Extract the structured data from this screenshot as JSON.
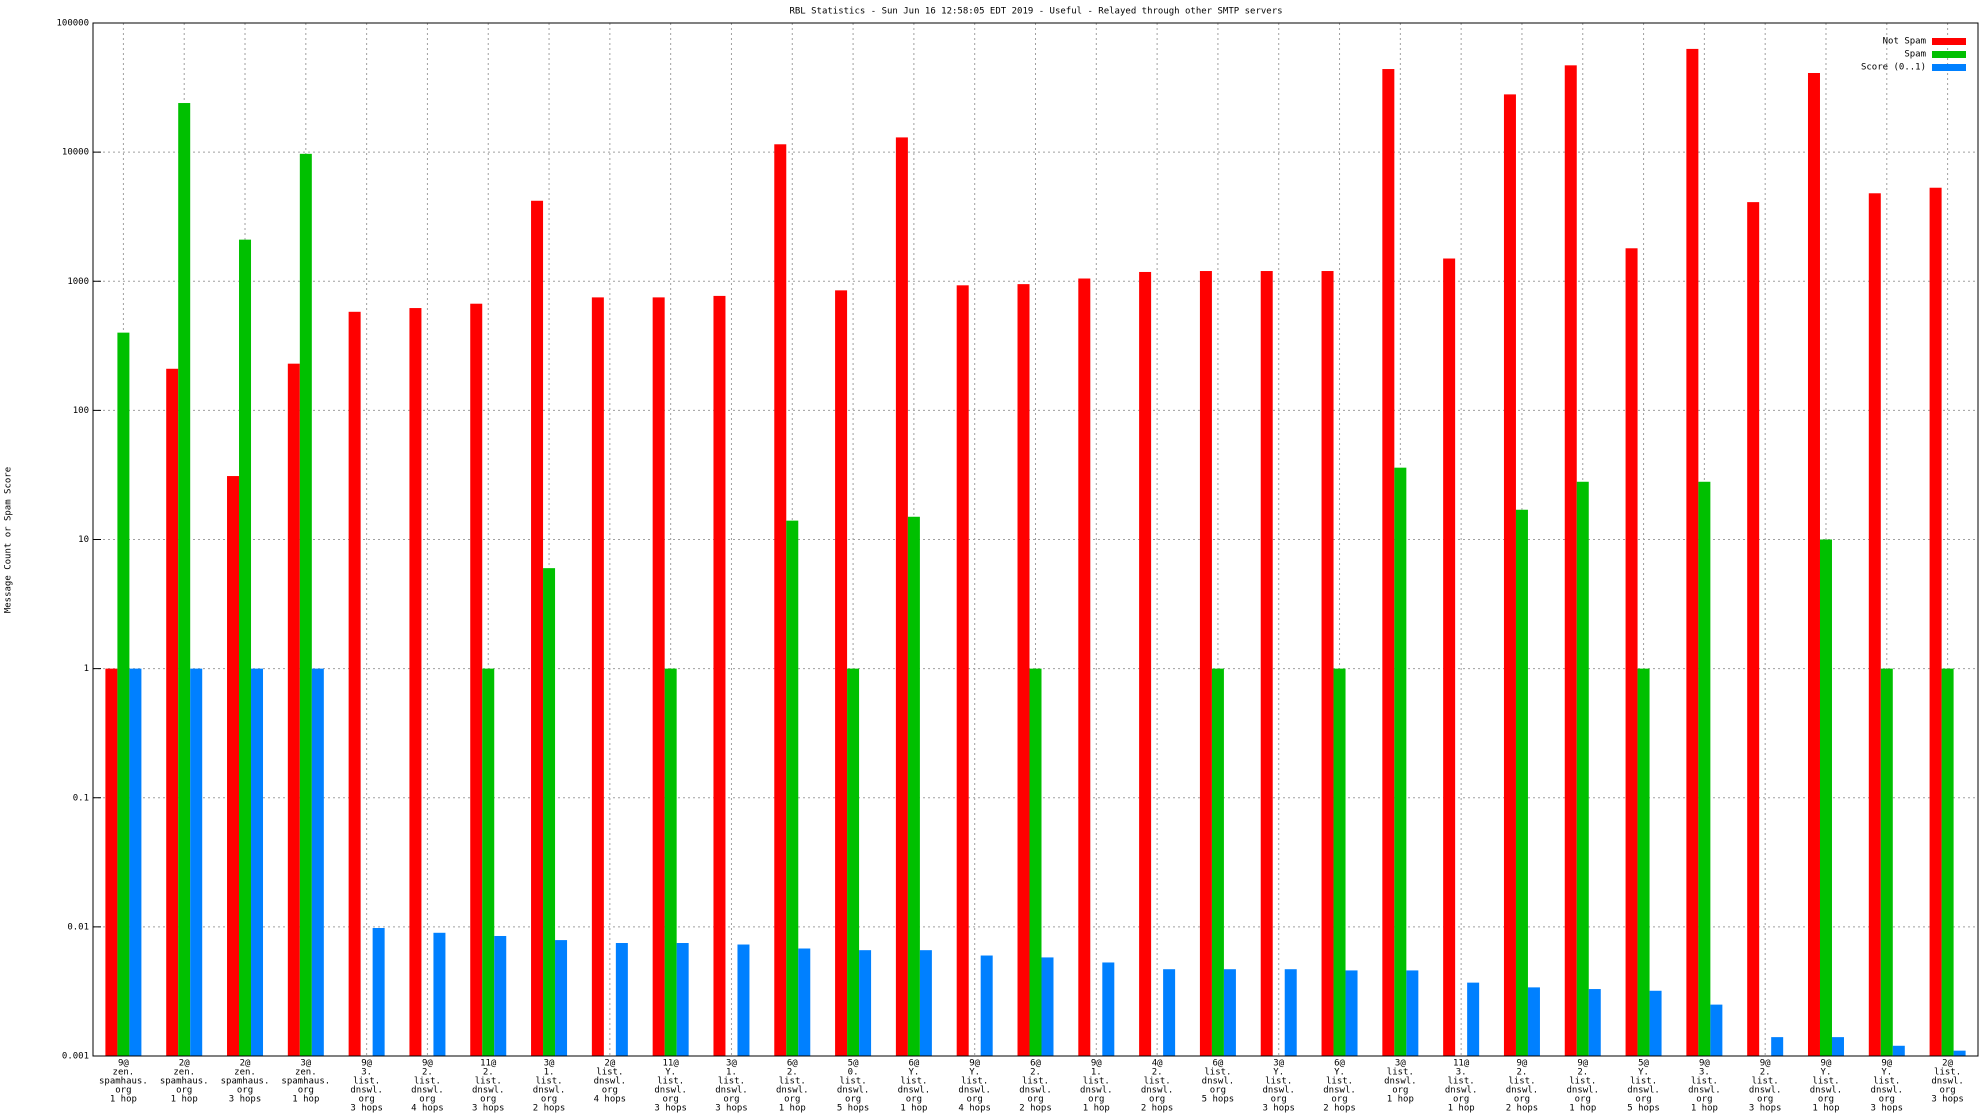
{
  "chart_data": {
    "type": "bar",
    "title": "RBL Statistics - Sun Jun 16 12:58:05 EDT 2019 - Useful - Relayed through other SMTP servers",
    "y_label": "Message Count or Spam Score",
    "log_scale": true,
    "grid": true,
    "legend_position": "top-right",
    "ylim": [
      0.001,
      100000
    ],
    "yticks": [
      0.001,
      0.01,
      0.1,
      1,
      10,
      100,
      1000,
      10000,
      100000
    ],
    "categories": [
      [
        "9@",
        "zen.",
        "spamhaus.",
        "org",
        "1 hop"
      ],
      [
        "2@",
        "zen.",
        "spamhaus.",
        "org",
        "1 hop"
      ],
      [
        "2@",
        "zen.",
        "spamhaus.",
        "org",
        "3 hops"
      ],
      [
        "3@",
        "zen.",
        "spamhaus.",
        "org",
        "1 hop"
      ],
      [
        "9@",
        "3.",
        "list.",
        "dnswl.",
        "org",
        "3 hops"
      ],
      [
        "9@",
        "2.",
        "list.",
        "dnswl.",
        "org",
        "4 hops"
      ],
      [
        "11@",
        "2.",
        "list.",
        "dnswl.",
        "org",
        "3 hops"
      ],
      [
        "3@",
        "1.",
        "list.",
        "dnswl.",
        "org",
        "2 hops"
      ],
      [
        "2@",
        "list.",
        "dnswl.",
        "org",
        "4 hops"
      ],
      [
        "11@",
        "Y.",
        "list.",
        "dnswl.",
        "org",
        "3 hops"
      ],
      [
        "3@",
        "1.",
        "list.",
        "dnswl.",
        "org",
        "3 hops"
      ],
      [
        "6@",
        "2.",
        "list.",
        "dnswl.",
        "org",
        "1 hop"
      ],
      [
        "5@",
        "0.",
        "list.",
        "dnswl.",
        "org",
        "5 hops"
      ],
      [
        "6@",
        "Y.",
        "list.",
        "dnswl.",
        "org",
        "1 hop"
      ],
      [
        "9@",
        "Y.",
        "list.",
        "dnswl.",
        "org",
        "4 hops"
      ],
      [
        "6@",
        "2.",
        "list.",
        "dnswl.",
        "org",
        "2 hops"
      ],
      [
        "9@",
        "1.",
        "list.",
        "dnswl.",
        "org",
        "1 hop"
      ],
      [
        "4@",
        "2.",
        "list.",
        "dnswl.",
        "org",
        "2 hops"
      ],
      [
        "6@",
        "list.",
        "dnswl.",
        "org",
        "5 hops"
      ],
      [
        "3@",
        "Y.",
        "list.",
        "dnswl.",
        "org",
        "3 hops"
      ],
      [
        "6@",
        "Y.",
        "list.",
        "dnswl.",
        "org",
        "2 hops"
      ],
      [
        "3@",
        "list.",
        "dnswl.",
        "org",
        "1 hop"
      ],
      [
        "11@",
        "3.",
        "list.",
        "dnswl.",
        "org",
        "1 hop"
      ],
      [
        "9@",
        "2.",
        "list.",
        "dnswl.",
        "org",
        "2 hops"
      ],
      [
        "9@",
        "2.",
        "list.",
        "dnswl.",
        "org",
        "1 hop"
      ],
      [
        "5@",
        "Y.",
        "list.",
        "dnswl.",
        "org",
        "5 hops"
      ],
      [
        "9@",
        "3.",
        "list.",
        "dnswl.",
        "org",
        "1 hop"
      ],
      [
        "9@",
        "2.",
        "list.",
        "dnswl.",
        "org",
        "3 hops"
      ],
      [
        "9@",
        "Y.",
        "list.",
        "dnswl.",
        "org",
        "1 hop"
      ],
      [
        "9@",
        "Y.",
        "list.",
        "dnswl.",
        "org",
        "3 hops"
      ],
      [
        "2@",
        "list.",
        "dnswl.",
        "org",
        "3 hops"
      ]
    ],
    "series": [
      {
        "name": "Not Spam",
        "color": "#ff0000",
        "values": [
          1,
          210,
          31,
          230,
          580,
          620,
          670,
          4200,
          750,
          750,
          770,
          11500,
          850,
          13000,
          930,
          950,
          1050,
          1180,
          1200,
          1200,
          1200,
          44000,
          1500,
          28000,
          47000,
          1800,
          63000,
          4100,
          41000,
          4800,
          5300
        ]
      },
      {
        "name": "Spam",
        "color": "#00c000",
        "values": [
          400,
          24000,
          2100,
          9700,
          null,
          null,
          1,
          6,
          null,
          1,
          null,
          14,
          1,
          15,
          null,
          1,
          null,
          null,
          1,
          null,
          1,
          36,
          null,
          17,
          28,
          1,
          28,
          null,
          10,
          1,
          1
        ]
      },
      {
        "name": "Score (0..1)",
        "color": "#0080ff",
        "values": [
          1,
          1,
          1,
          1,
          0.0098,
          0.009,
          0.0085,
          0.0079,
          0.0075,
          0.0075,
          0.0073,
          0.0068,
          0.0066,
          0.0066,
          0.006,
          0.0058,
          0.0053,
          0.0047,
          0.0047,
          0.0047,
          0.0046,
          0.0046,
          0.0037,
          0.0034,
          0.0033,
          0.0032,
          0.0025,
          0.0014,
          0.0014,
          0.0012,
          0.0011
        ]
      }
    ]
  }
}
